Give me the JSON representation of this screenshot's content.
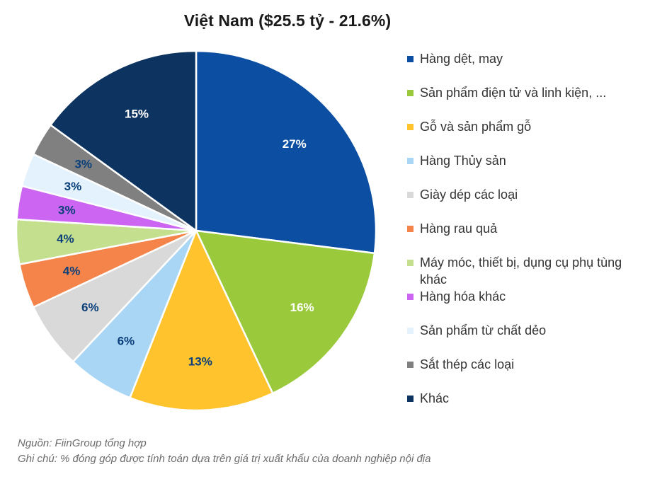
{
  "chart_data": {
    "type": "pie",
    "title": "Việt Nam ($25.5 tỷ - 21.6%)",
    "legend_position": "right",
    "slices": [
      {
        "label": "Hàng dệt, may",
        "value": 27,
        "value_label": "27%",
        "color": "#0B4EA2",
        "label_color": "#ffffff"
      },
      {
        "label": "Sản phẩm điện tử và linh kiện, ...",
        "value": 16,
        "value_label": "16%",
        "color": "#9ACA3C",
        "label_color": "#ffffff"
      },
      {
        "label": "Gỗ và sản phẩm gỗ",
        "value": 13,
        "value_label": "13%",
        "color": "#FEC32D",
        "label_color": "#0B3F7A"
      },
      {
        "label": "Hàng Thủy sản",
        "value": 6,
        "value_label": "6%",
        "color": "#A9D6F5",
        "label_color": "#0B3F7A"
      },
      {
        "label": "Giày dép các loại",
        "value": 6,
        "value_label": "6%",
        "color": "#D9D9D9",
        "label_color": "#0B3F7A"
      },
      {
        "label": "Hàng rau quả",
        "value": 4,
        "value_label": "4%",
        "color": "#F4844A",
        "label_color": "#0B3F7A"
      },
      {
        "label": "Máy móc, thiết bị, dụng cụ phụ tùng khác",
        "value": 4,
        "value_label": "4%",
        "color": "#C4E08E",
        "label_color": "#0B3F7A"
      },
      {
        "label": "Hàng hóa khác",
        "value": 3,
        "value_label": "3%",
        "color": "#CC66F2",
        "label_color": "#0B3F7A"
      },
      {
        "label": "Sản phẩm từ chất dẻo",
        "value": 3,
        "value_label": "3%",
        "color": "#E3F2FC",
        "label_color": "#0B3F7A"
      },
      {
        "label": "Sắt thép các loại",
        "value": 3,
        "value_label": "3%",
        "color": "#808080",
        "label_color": "#0B3F7A"
      },
      {
        "label": "Khác",
        "value": 15,
        "value_label": "15%",
        "color": "#0D3461",
        "label_color": "#ffffff"
      }
    ]
  },
  "footnotes": {
    "source": "Nguồn: FiinGroup tổng hợp",
    "note": "Ghi chú: % đóng góp được tính toán dựa trên giá trị xuất khẩu của doanh nghiệp nội địa"
  }
}
